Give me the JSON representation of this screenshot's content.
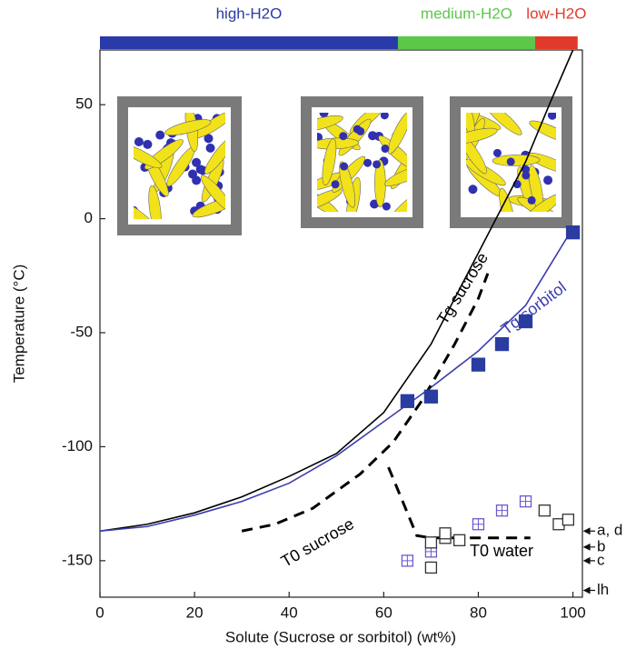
{
  "chart_data": {
    "type": "line",
    "x_label": "Solute (Sucrose or sorbitol) (wt%)",
    "y_label": "Temperature (°C)",
    "xlim": [
      0,
      102
    ],
    "ylim": [
      -166,
      74
    ],
    "xticks": [
      0,
      20,
      40,
      60,
      80,
      100
    ],
    "yticks": [
      50,
      0,
      -50,
      -100,
      -150
    ],
    "regions": [
      {
        "label": "high-H2O",
        "start": 0,
        "end": 63,
        "color": "#2a3aa8"
      },
      {
        "label": "medium-H2O",
        "start": 63,
        "end": 92,
        "color": "#5cc84a"
      },
      {
        "label": "low-H2O",
        "start": 92,
        "end": 101,
        "color": "#e03a2a"
      }
    ],
    "series": [
      {
        "name": "Tg sucrose",
        "color": "#000000",
        "style": "solid",
        "x": [
          0,
          10,
          20,
          30,
          40,
          50,
          60,
          70,
          80,
          90,
          95,
          100
        ],
        "values": [
          -137,
          -134,
          -129,
          -122,
          -113,
          -103,
          -85,
          -55,
          -15,
          25,
          50,
          74
        ]
      },
      {
        "name": "Tg sorbitol",
        "color": "#3c3cb0",
        "style": "solid",
        "x": [
          0,
          10,
          20,
          30,
          40,
          50,
          60,
          70,
          80,
          90,
          100
        ],
        "values": [
          -137,
          -135,
          -130,
          -124,
          -116,
          -104,
          -89,
          -74,
          -58,
          -38,
          -4
        ]
      },
      {
        "name": "T0 sucrose",
        "color": "#000000",
        "style": "dashed",
        "x": [
          30,
          37,
          45,
          55,
          62,
          68,
          75,
          80,
          82
        ],
        "values": [
          -137,
          -134,
          -127,
          -112,
          -98,
          -80,
          -55,
          -35,
          -24
        ]
      },
      {
        "name": "T0 water",
        "color": "#000000",
        "style": "dashed",
        "x": [
          61,
          67,
          70,
          91
        ],
        "values": [
          -109,
          -139,
          -140,
          -140
        ]
      },
      {
        "color": "#2b3ca0",
        "style": "filled-square",
        "x": [
          65,
          70,
          80,
          85,
          90,
          100
        ],
        "values": [
          -80,
          -78,
          -64,
          -55,
          -45,
          -6
        ]
      },
      {
        "color": "#6a5ad0",
        "style": "open-square-cross",
        "x": [
          65,
          70,
          80,
          85,
          90
        ],
        "values": [
          -150,
          -146,
          -134,
          -128,
          -124
        ]
      },
      {
        "color": "#333333",
        "style": "open-square",
        "x": [
          70,
          70,
          73,
          73,
          76,
          94,
          97,
          99
        ],
        "values": [
          -153,
          -142,
          -140,
          -138,
          -141,
          -128,
          -134,
          -132
        ]
      }
    ],
    "reference_markers": [
      {
        "label": "a, d",
        "value": -137
      },
      {
        "label": "b",
        "value": -144
      },
      {
        "label": "c",
        "value": -150
      },
      {
        "label": "lh",
        "value": -163
      }
    ]
  }
}
